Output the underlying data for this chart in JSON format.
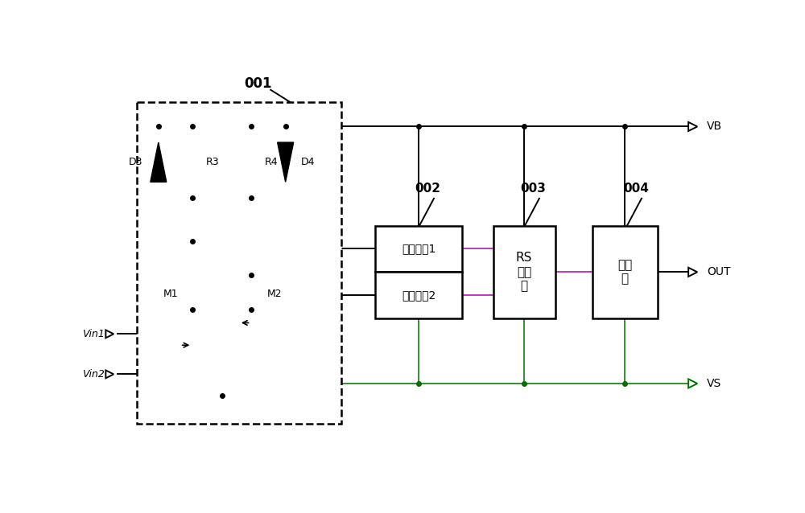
{
  "bg_color": "#ffffff",
  "purple_color": "#b000b0",
  "green_color": "#007000",
  "label_001": "001",
  "label_002": "002",
  "label_003": "003",
  "label_004": "004",
  "label_VB": "VB",
  "label_VS": "VS",
  "label_OUT": "OUT",
  "label_Vin1": "Vin1",
  "label_Vin2": "Vin2",
  "label_D3": "D3",
  "label_D4": "D4",
  "label_R3": "R3",
  "label_R4": "R4",
  "label_M1": "M1",
  "label_M2": "M2",
  "label_filter1": "滤波电路1",
  "label_filter2": "滤波电路2",
  "label_rs": "RS\n锁存\n器",
  "label_driver": "驱动\n器"
}
